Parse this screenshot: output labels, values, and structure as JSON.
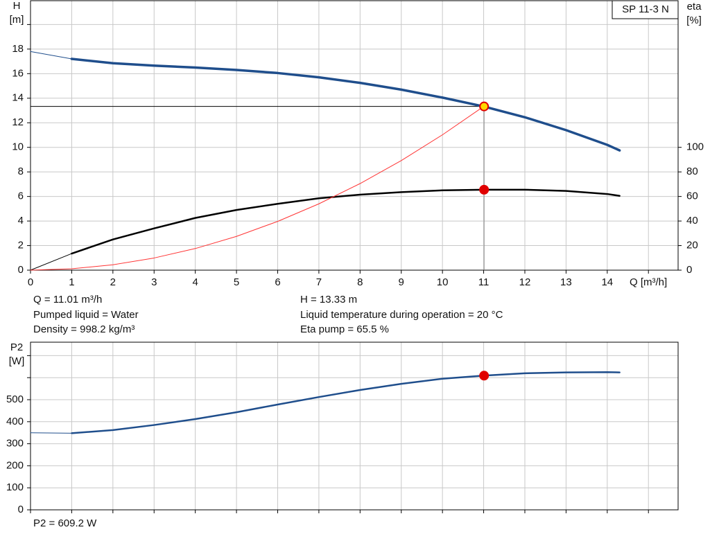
{
  "chart_data": [
    {
      "type": "line",
      "title": "SP 11-3 N",
      "x_label": "Q [m³/h]",
      "y_label": "H",
      "y_unit": "[m]",
      "y2_label": "eta",
      "y2_unit": "[%]",
      "xlim": [
        0,
        15.72
      ],
      "xticks": [
        0,
        1,
        2,
        3,
        4,
        5,
        6,
        7,
        8,
        9,
        10,
        11,
        12,
        13,
        14
      ],
      "ylim": [
        0,
        21.94
      ],
      "yticks": [
        0,
        2,
        4,
        6,
        8,
        10,
        12,
        14,
        16,
        18
      ],
      "y2lim": [
        0,
        219.4
      ],
      "y2ticks": [
        0,
        20,
        40,
        60,
        80,
        100
      ],
      "grid": true,
      "series": [
        {
          "color": "#1f4e8c",
          "width": 1,
          "x": [
            0,
            1
          ],
          "values": [
            17.8,
            17.2
          ]
        },
        {
          "color": "#1f4e8c",
          "width": 3.5,
          "x": [
            1,
            2,
            3,
            4,
            5,
            6,
            7,
            8,
            9,
            10,
            11,
            12,
            13,
            14,
            14.3
          ],
          "values": [
            17.2,
            16.85,
            16.65,
            16.5,
            16.3,
            16.05,
            15.7,
            15.25,
            14.7,
            14.05,
            13.33,
            12.45,
            11.4,
            10.2,
            9.75
          ]
        },
        {
          "color": "#000000",
          "width": 1,
          "axis": "y2",
          "x": [
            0,
            1
          ],
          "values": [
            0,
            13.5
          ]
        },
        {
          "color": "#000000",
          "width": 2.5,
          "axis": "y2",
          "x": [
            1,
            2,
            3,
            4,
            5,
            6,
            7,
            8,
            9,
            10,
            11,
            12,
            13,
            14,
            14.3
          ],
          "values": [
            13.5,
            25,
            34,
            42.5,
            49,
            54,
            58.5,
            61.5,
            63.5,
            65,
            65.5,
            65.5,
            64.5,
            62,
            60.5
          ]
        },
        {
          "color": "#ff3333",
          "width": 1,
          "x": [
            0,
            1,
            2,
            3,
            4,
            5,
            6,
            7,
            8,
            9,
            10,
            11
          ],
          "values": [
            0,
            0.11,
            0.44,
            0.99,
            1.76,
            2.75,
            3.97,
            5.4,
            7.05,
            8.92,
            11.02,
            13.33
          ]
        }
      ],
      "markers": [
        {
          "x": 11.01,
          "y": 13.33,
          "color": "#ffd700",
          "stroke": "#e00000"
        },
        {
          "x": 11.01,
          "y": 65.5,
          "axis": "y2",
          "color": "#e00000",
          "stroke": "#e00000"
        }
      ],
      "guide_lines": true,
      "notes": [
        "Q = 11.01 m³/h",
        "Pumped liquid = Water",
        "Density = 998.2 kg/m³",
        "H = 13.33 m",
        "Liquid temperature during operation = 20 °C",
        "Eta pump = 65.5 %"
      ]
    },
    {
      "type": "line",
      "y_label": "P2",
      "y_unit": "[W]",
      "xlim": [
        0,
        15.72
      ],
      "ylim": [
        0,
        761
      ],
      "yticks": [
        0,
        100,
        200,
        300,
        400,
        500
      ],
      "grid": true,
      "series": [
        {
          "color": "#1f4e8c",
          "width": 1,
          "x": [
            0,
            1
          ],
          "values": [
            350,
            348
          ]
        },
        {
          "color": "#1f4e8c",
          "width": 2.5,
          "x": [
            1,
            2,
            3,
            4,
            5,
            6,
            7,
            8,
            9,
            10,
            11,
            12,
            13,
            14,
            14.3
          ],
          "values": [
            348,
            362,
            385,
            412,
            443,
            478,
            512,
            544,
            572,
            595,
            609.2,
            620,
            624,
            625,
            624
          ]
        }
      ],
      "markers": [
        {
          "x": 11.01,
          "y": 609.2,
          "color": "#e00000",
          "stroke": "#e00000"
        }
      ],
      "notes": [
        "P2 = 609.2 W"
      ]
    }
  ]
}
